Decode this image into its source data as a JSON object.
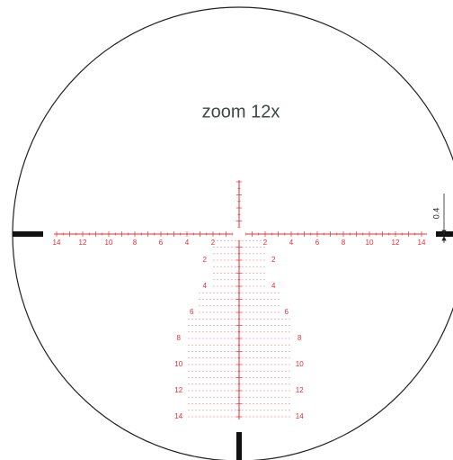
{
  "title": "zoom 12x",
  "horizontal_left_labels": [
    "14",
    "12",
    "10",
    "8",
    "6",
    "4",
    "2"
  ],
  "horizontal_right_labels": [
    "2",
    "4",
    "6",
    "8",
    "10",
    "12",
    "14"
  ],
  "vertical_left_labels": [
    "2",
    "4",
    "6",
    "8",
    "10",
    "12",
    "14"
  ],
  "vertical_right_labels": [
    "2",
    "4",
    "6",
    "8",
    "10",
    "12",
    "14"
  ],
  "dimension_label": "0.4"
}
